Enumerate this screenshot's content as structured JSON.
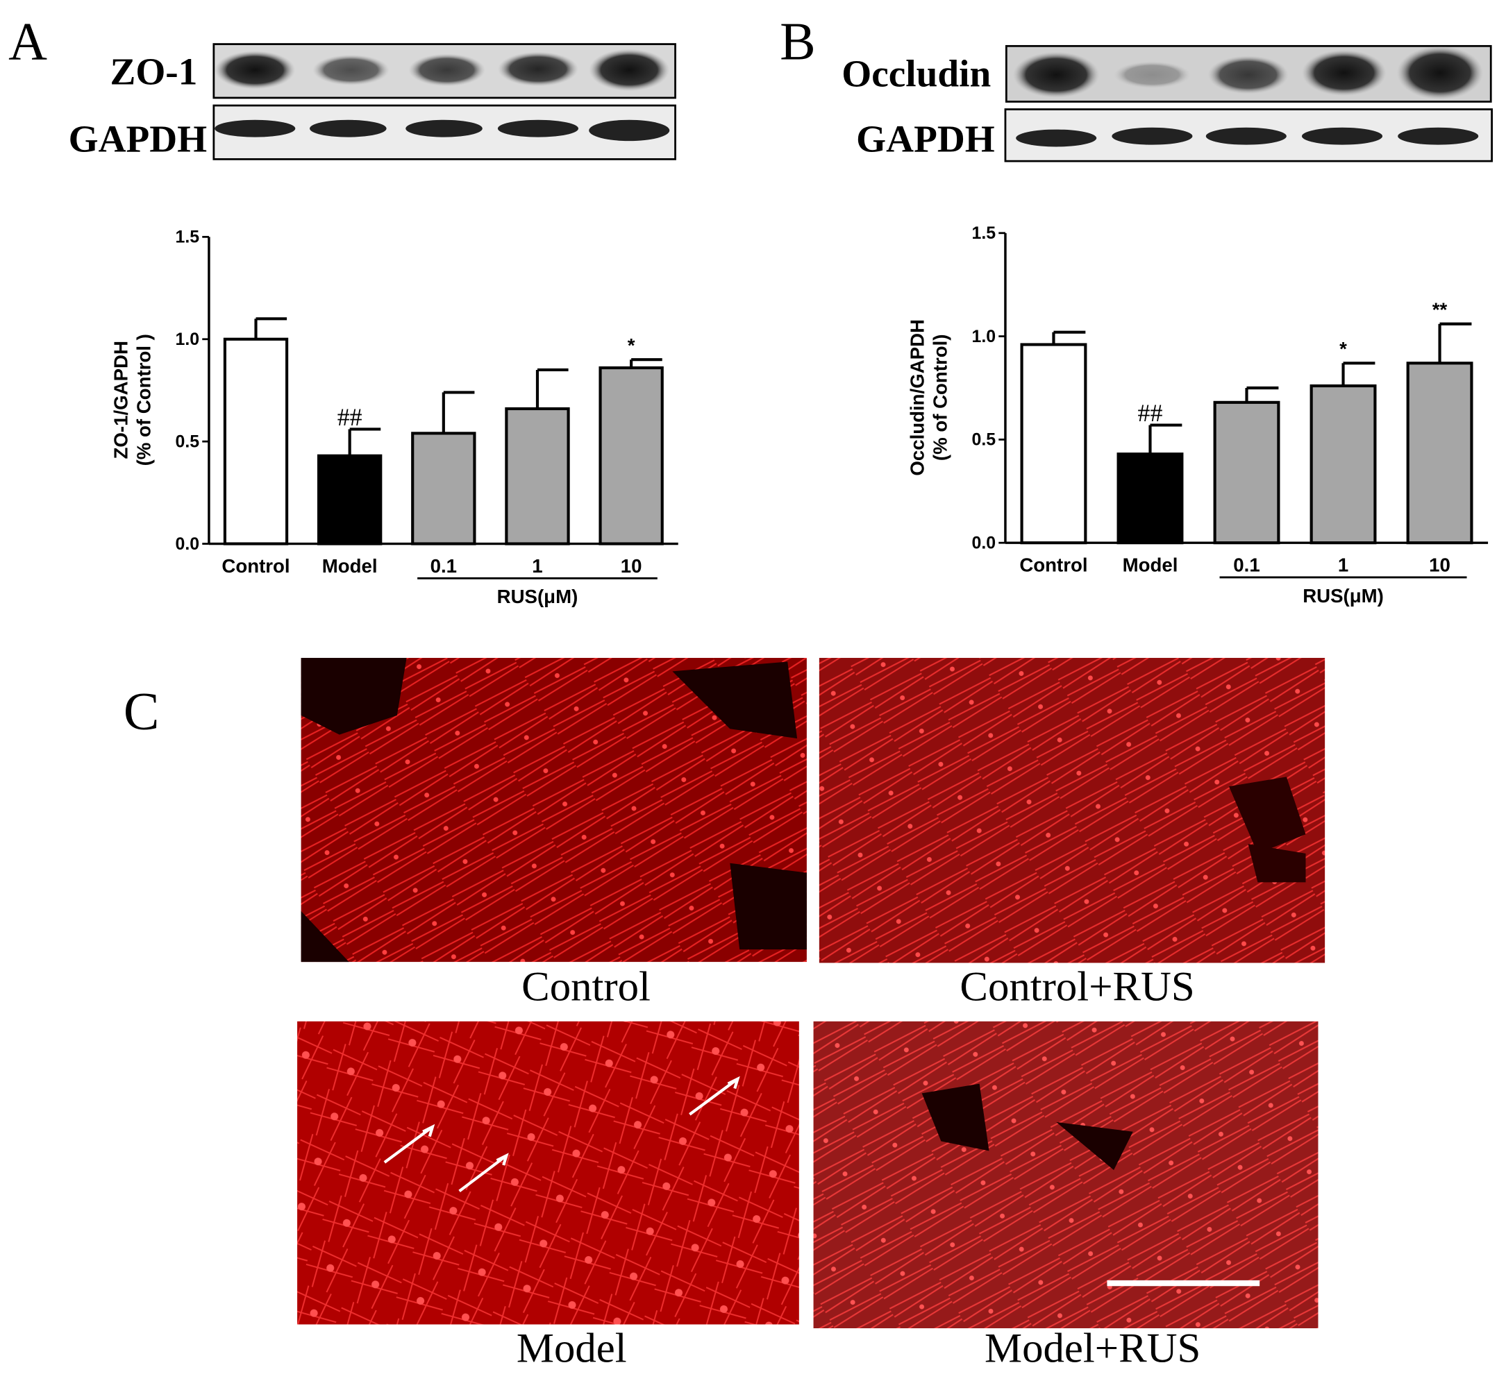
{
  "figure": {
    "panels": [
      "A",
      "B",
      "C"
    ],
    "blot_labels_a": [
      "ZO-1",
      "GAPDH"
    ],
    "blot_labels_b": [
      "Occludin",
      "GAPDH"
    ],
    "image_captions": [
      "Control",
      "Control+RUS",
      "Model",
      "Model+RUS"
    ]
  },
  "chart_data": [
    {
      "type": "bar",
      "y_label": [
        "ZO-1/GAPDH",
        "(% of Control )"
      ],
      "categories": [
        "Control",
        "Model",
        "0.1",
        "1",
        "10"
      ],
      "group_label": "RUS(μM)",
      "values": [
        1.0,
        0.43,
        0.54,
        0.66,
        0.86
      ],
      "errors": [
        0.1,
        0.13,
        0.2,
        0.19,
        0.04
      ],
      "colors": [
        "#ffffff",
        "#000000",
        "#a6a6a6",
        "#a6a6a6",
        "#a6a6a6"
      ],
      "annotations": [
        null,
        "##",
        null,
        null,
        "*"
      ],
      "ylim": [
        0,
        1.5
      ],
      "yticks": [
        {
          "value": 0,
          "label": "0.0"
        },
        {
          "value": 0.5,
          "label": "0.5"
        },
        {
          "value": 1,
          "label": "1.0"
        },
        {
          "value": 1.5,
          "label": "1.5"
        }
      ]
    },
    {
      "type": "bar",
      "y_label": [
        "Occludin/GAPDH",
        "(% of Control)"
      ],
      "categories": [
        "Control",
        "Model",
        "0.1",
        "1",
        "10"
      ],
      "group_label": "RUS(μM)",
      "values": [
        0.96,
        0.43,
        0.68,
        0.76,
        0.87
      ],
      "errors": [
        0.06,
        0.14,
        0.07,
        0.11,
        0.19
      ],
      "colors": [
        "#ffffff",
        "#000000",
        "#a6a6a6",
        "#a6a6a6",
        "#a6a6a6"
      ],
      "annotations": [
        null,
        "##",
        null,
        "*",
        "**"
      ],
      "ylim": [
        0,
        1.5
      ],
      "yticks": [
        {
          "value": 0,
          "label": "0.0"
        },
        {
          "value": 0.5,
          "label": "0.5"
        },
        {
          "value": 1,
          "label": "1.0"
        },
        {
          "value": 1.5,
          "label": "1.5"
        }
      ]
    }
  ]
}
